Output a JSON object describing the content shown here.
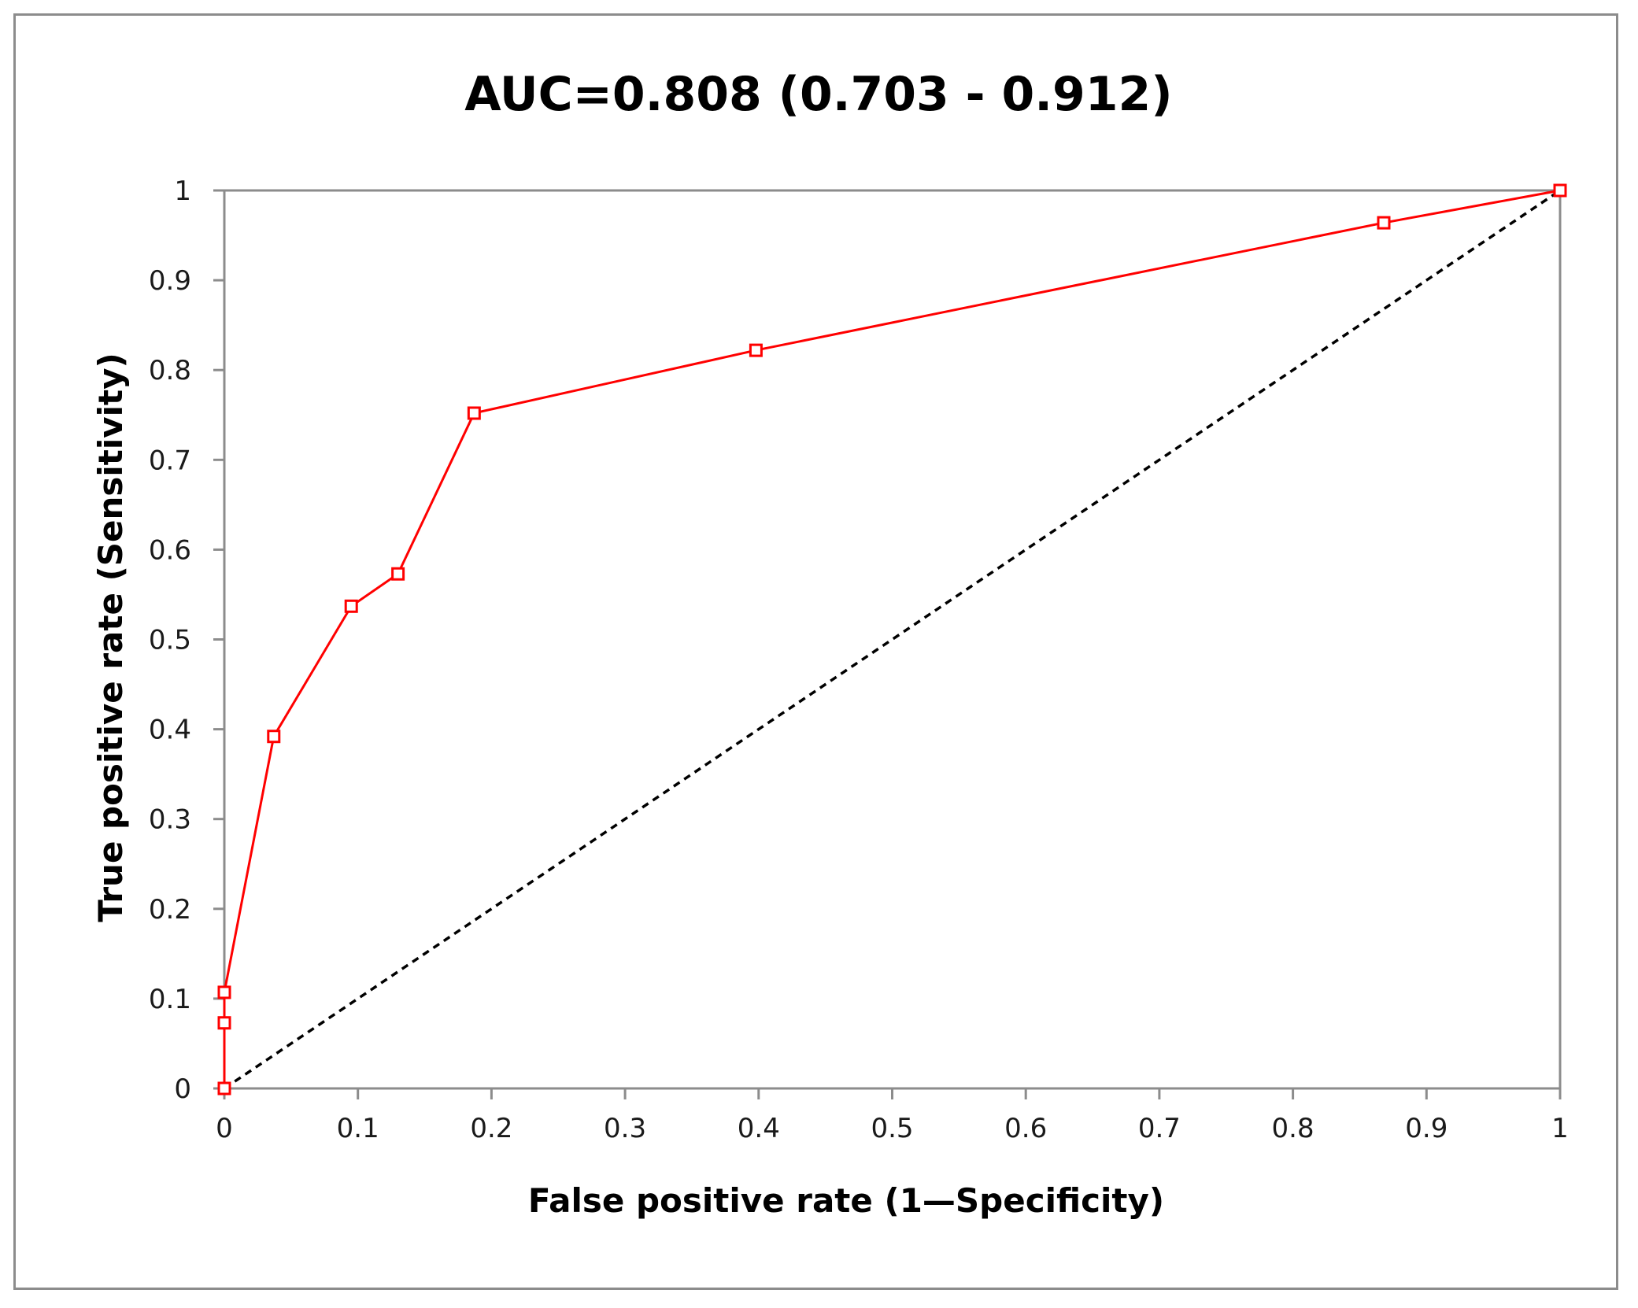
{
  "chart_data": {
    "type": "line",
    "title": "AUC=0.808 (0.703  - 0.912)",
    "xlabel": "False positive rate (1—Specificity)",
    "ylabel": "True positive rate (Sensitivity)",
    "xlim": [
      0,
      1
    ],
    "ylim": [
      0,
      1
    ],
    "x_ticks": [
      "0",
      "0.1",
      "0.2",
      "0.3",
      "0.4",
      "0.5",
      "0.6",
      "0.7",
      "0.8",
      "0.9",
      "1"
    ],
    "y_ticks": [
      "0",
      "0.1",
      "0.2",
      "0.3",
      "0.4",
      "0.5",
      "0.6",
      "0.7",
      "0.8",
      "0.9",
      "1"
    ],
    "grid": false,
    "legend": "none",
    "series": [
      {
        "style": "solid",
        "marker": "open-square",
        "color": "#ff0000",
        "points": [
          {
            "x": 0,
            "y": 0
          },
          {
            "x": 0,
            "y": 0.073
          },
          {
            "x": 0,
            "y": 0.107
          },
          {
            "x": 0.037,
            "y": 0.392
          },
          {
            "x": 0.095,
            "y": 0.537
          },
          {
            "x": 0.13,
            "y": 0.573
          },
          {
            "x": 0.187,
            "y": 0.752
          },
          {
            "x": 0.398,
            "y": 0.822
          },
          {
            "x": 0.868,
            "y": 0.964
          },
          {
            "x": 1,
            "y": 1
          }
        ]
      },
      {
        "style": "dashed",
        "marker": "none",
        "color": "#000000",
        "points": [
          {
            "x": 0,
            "y": 0
          },
          {
            "x": 1,
            "y": 1
          }
        ]
      }
    ]
  }
}
